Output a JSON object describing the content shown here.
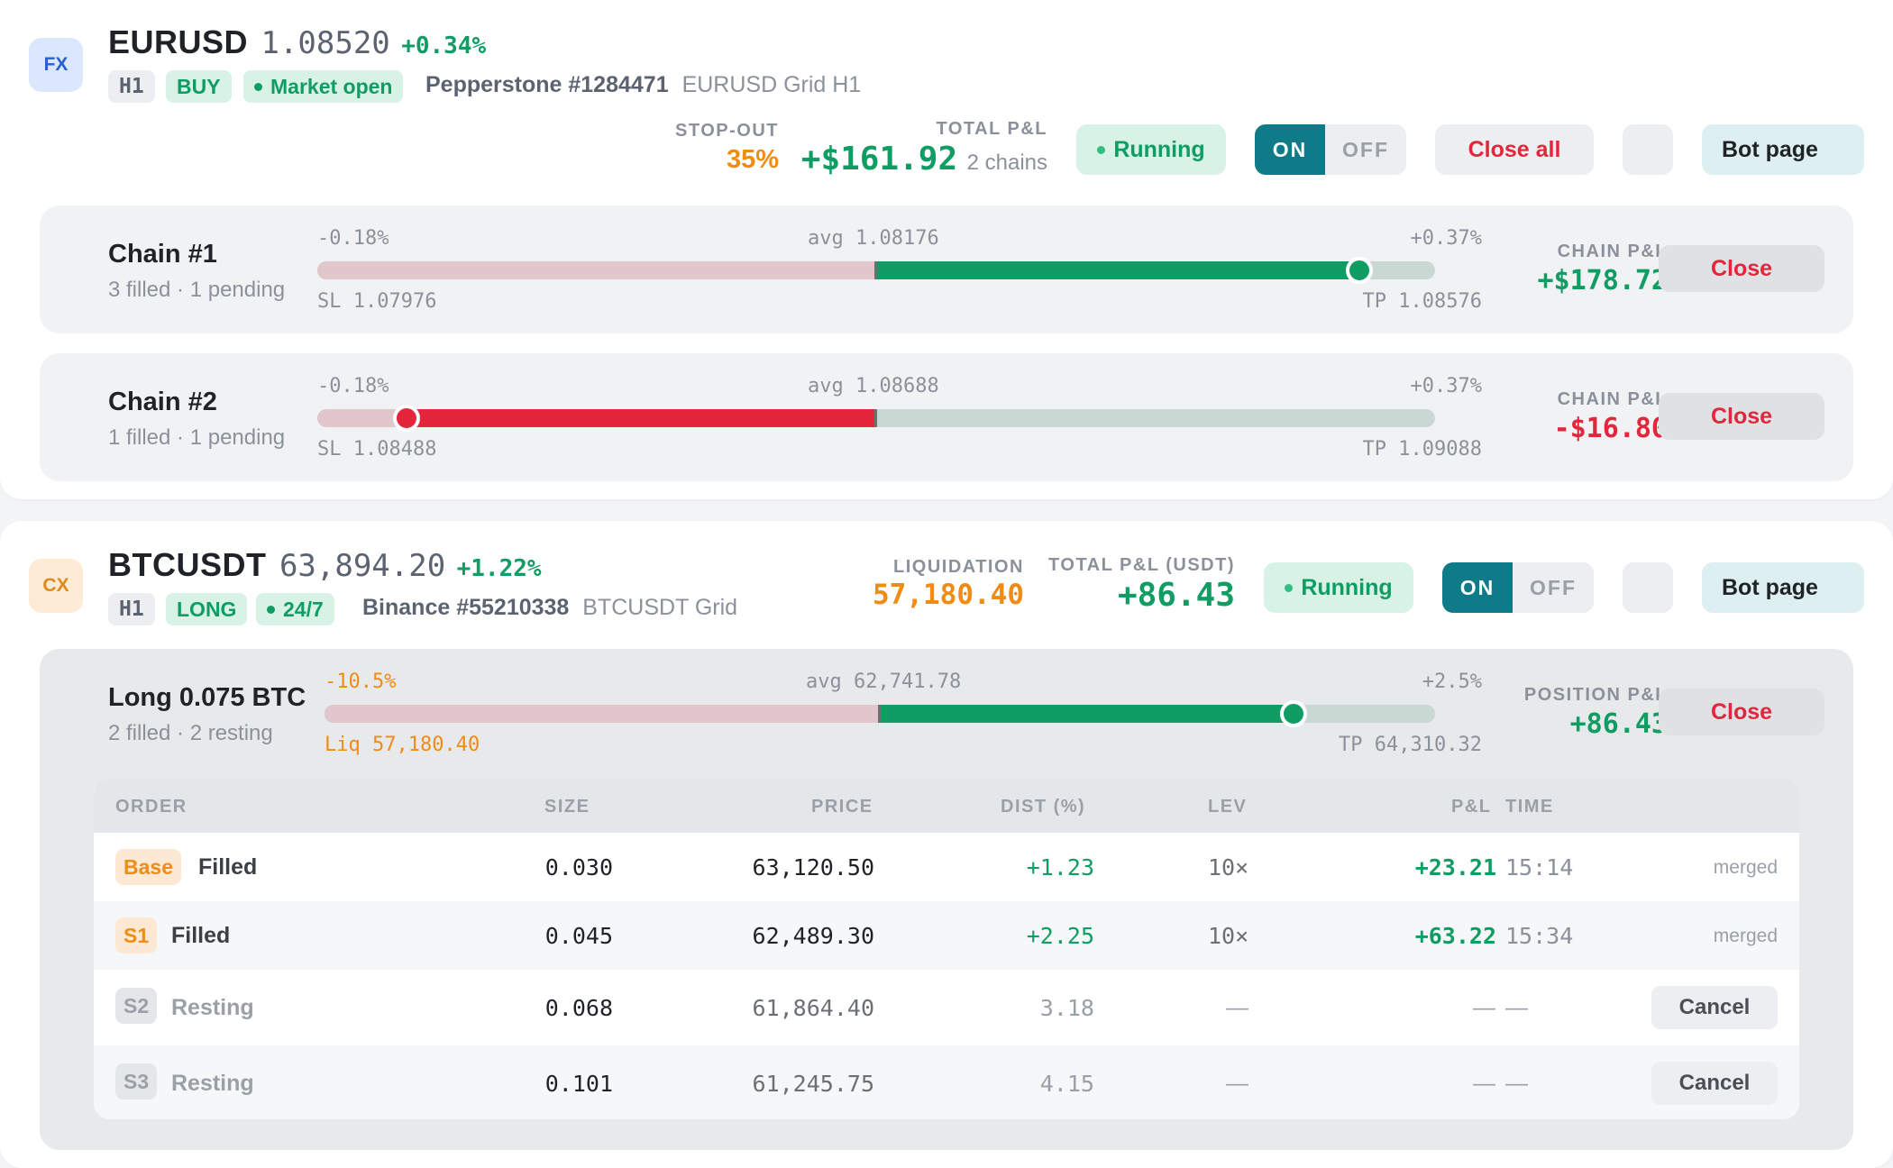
{
  "bots": [
    {
      "icon": "FX",
      "symbol": "EURUSD",
      "price": "1.08520",
      "change": "+0.34%",
      "timeframe": "H1",
      "side": "BUY",
      "market_status": "Market open",
      "account": "Pepperstone #1284471",
      "bot_name": "EURUSD Grid H1",
      "risk_label": "STOP-OUT",
      "risk_value": "35%",
      "pnl_label": "TOTAL P&L",
      "pnl_value": "+$161.92",
      "pnl_sub": "2 chains",
      "status": "Running",
      "toggle_on": "ON",
      "toggle_off": "OFF",
      "close_all": "Close all",
      "bot_page": "Bot page",
      "chains": [
        {
          "title": "Chain #1",
          "sub": "3 filled · 1 pending",
          "left_pct": "-0.18%",
          "avg": "avg 1.08176",
          "right_pct": "+0.37%",
          "sl": "SL 1.07976",
          "tp": "TP 1.08576",
          "pnl_label": "CHAIN P&L",
          "pnl": "+$178.72",
          "progress": 0.865,
          "close": "Close"
        },
        {
          "title": "Chain #2",
          "sub": "1 filled · 1 pending",
          "left_pct": "-0.18%",
          "avg": "avg 1.08688",
          "right_pct": "+0.37%",
          "sl": "SL 1.08488",
          "tp": "TP 1.09088",
          "pnl_label": "CHAIN P&L",
          "pnl": "-$16.80",
          "progress": -0.84,
          "close": "Close"
        }
      ]
    },
    {
      "icon": "CX",
      "symbol": "BTCUSDT",
      "price": "63,894.20",
      "change": "+1.22%",
      "timeframe": "H1",
      "side": "LONG",
      "market_status": "24/7",
      "account": "Binance #55210338",
      "bot_name": "BTCUSDT Grid",
      "risk_label": "LIQUIDATION",
      "risk_value": "57,180.40",
      "pnl_label": "TOTAL P&L (USDT)",
      "pnl_value": "+86.43",
      "status": "Running",
      "toggle_on": "ON",
      "toggle_off": "OFF",
      "bot_page": "Bot page",
      "position": {
        "title": "Long 0.075 BTC",
        "sub": "2 filled · 2 resting",
        "left_pct": "-10.5%",
        "avg": "avg 62,741.78",
        "right_pct": "+2.5%",
        "liq": "Liq 57,180.40",
        "tp": "TP 64,310.32",
        "pnl_label": "POSITION P&L",
        "pnl": "+86.43",
        "progress": 0.745,
        "close": "Close"
      },
      "table": {
        "headers": [
          "ORDER",
          "SIZE",
          "PRICE",
          "DIST (%)",
          "LEV",
          "P&L",
          "TIME"
        ],
        "rows": [
          {
            "badge": "Base",
            "status": "Filled",
            "size": "0.030",
            "price": "63,120.50",
            "dist": "+1.23",
            "lev": "10×",
            "pnl": "+23.21",
            "time": "15:14",
            "action": "merged"
          },
          {
            "badge": "S1",
            "status": "Filled",
            "size": "0.045",
            "price": "62,489.30",
            "dist": "+2.25",
            "lev": "10×",
            "pnl": "+63.22",
            "time": "15:34",
            "action": "merged"
          },
          {
            "badge": "S2",
            "status": "Resting",
            "size": "0.068",
            "price": "61,864.40",
            "dist": "3.18",
            "lev": "—",
            "pnl": "—",
            "time": "—",
            "action": "Cancel"
          },
          {
            "badge": "S3",
            "status": "Resting",
            "size": "0.101",
            "price": "61,245.75",
            "dist": "4.15",
            "lev": "—",
            "pnl": "—",
            "time": "—",
            "action": "Cancel"
          }
        ]
      }
    }
  ],
  "colors": {
    "green": "#0f9d63",
    "red": "#e3263b",
    "orange": "#ef8c16",
    "teal": "#0f7b88"
  }
}
